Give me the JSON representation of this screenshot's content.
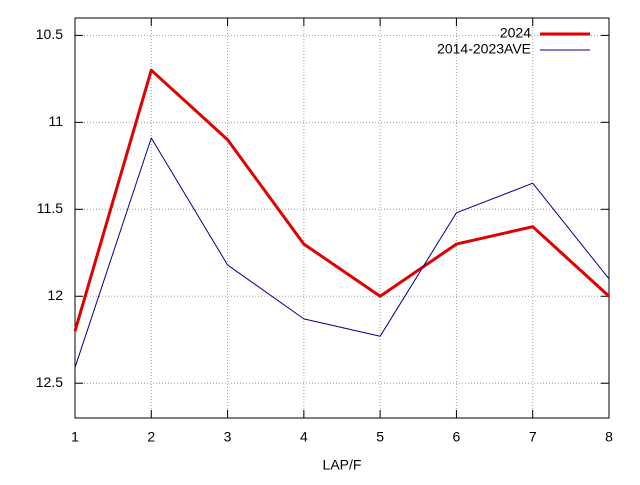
{
  "chart_data": {
    "type": "line",
    "x_label": "LAP/F",
    "x": [
      1,
      2,
      3,
      4,
      5,
      6,
      7,
      8
    ],
    "xlim": [
      1,
      8
    ],
    "xticks": [
      1,
      2,
      3,
      4,
      5,
      6,
      7,
      8
    ],
    "ylim": [
      10.4,
      12.7
    ],
    "y_reversed": true,
    "yticks": [
      10.5,
      11,
      11.5,
      12,
      12.5
    ],
    "grid": true,
    "legend": "top-right",
    "series": [
      {
        "name": "2024",
        "color": "#e00000",
        "width": 3,
        "values": [
          12.2,
          10.7,
          11.1,
          11.7,
          12.0,
          11.7,
          11.6,
          12.0
        ]
      },
      {
        "name": "2014-2023AVE",
        "color": "#000090",
        "width": 1,
        "values": [
          12.41,
          11.09,
          11.82,
          12.13,
          12.23,
          11.52,
          11.35,
          11.9
        ]
      }
    ]
  }
}
